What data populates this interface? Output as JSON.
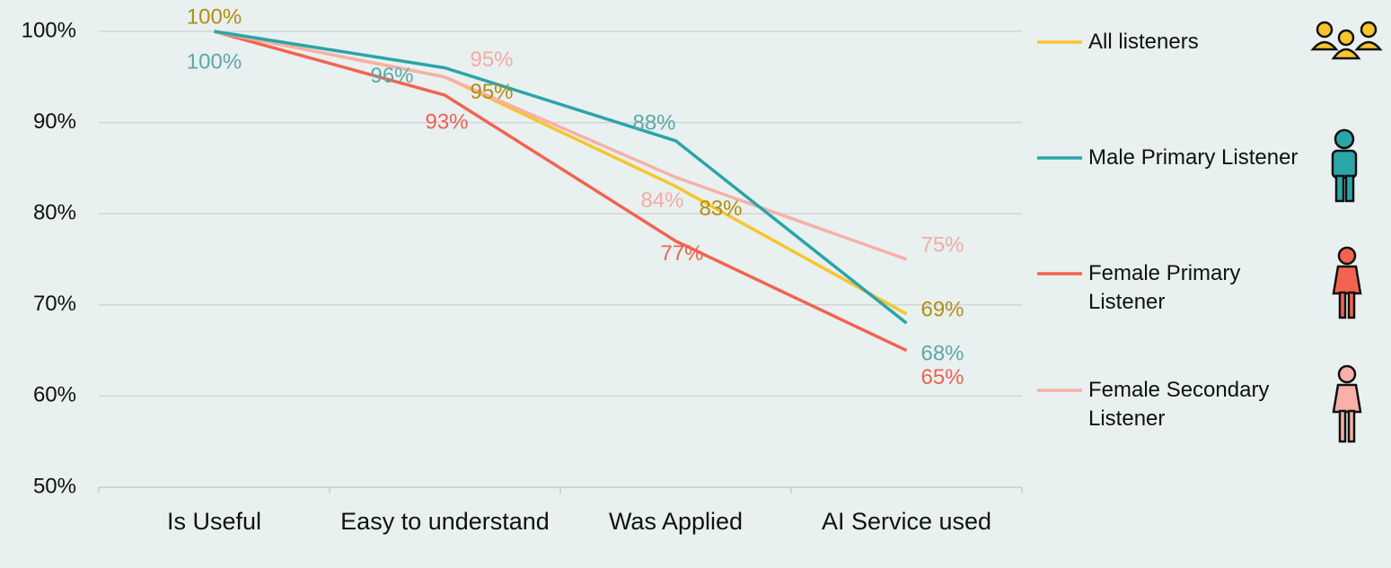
{
  "chart_data": {
    "type": "line",
    "categories": [
      "Is Useful",
      "Easy to understand",
      "Was Applied",
      "AI Service used"
    ],
    "ylim": [
      50,
      100
    ],
    "yticks": [
      {
        "value": 50,
        "label": "50%"
      },
      {
        "value": 60,
        "label": "60%"
      },
      {
        "value": 70,
        "label": "70%"
      },
      {
        "value": 80,
        "label": "80%"
      },
      {
        "value": 90,
        "label": "90%"
      },
      {
        "value": 100,
        "label": "100%"
      }
    ],
    "grid": true,
    "legend": "right",
    "series": [
      {
        "name": "All listeners",
        "color": "#f7c52d",
        "label_color": "#b38d12",
        "values": [
          100,
          95,
          83,
          69
        ],
        "value_labels": [
          "100%",
          "95%",
          "83%",
          "69%"
        ]
      },
      {
        "name": "Male Primary Listener",
        "color": "#2aa5a8",
        "label_color": "#5ea7a8",
        "values": [
          100,
          96,
          88,
          68
        ],
        "value_labels": [
          "100%",
          "96%",
          "88%",
          "68%"
        ]
      },
      {
        "name": "Female Primary Listener",
        "color": "#f2644f",
        "label_color": "#ef6250",
        "values": [
          100,
          93,
          77,
          65
        ],
        "value_labels": [
          null,
          "93%",
          "77%",
          "65%"
        ]
      },
      {
        "name": "Female Secondary Listener",
        "color": "#f8b0a8",
        "label_color": "#f6aaa2",
        "values": [
          100,
          95,
          84,
          75
        ],
        "value_labels": [
          null,
          "95%",
          "84%",
          "75%"
        ]
      }
    ]
  }
}
